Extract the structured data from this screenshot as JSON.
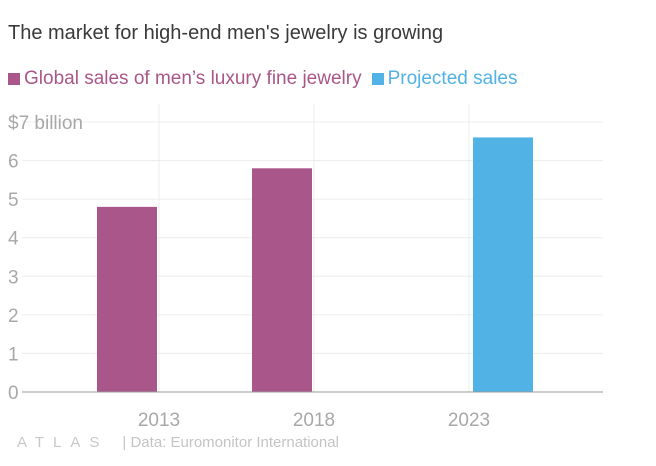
{
  "colors": {
    "actual": "#a9578a",
    "projected": "#51b2e5",
    "grid": "#ececec",
    "axis": "#999999",
    "tick_text": "#a8a8a8",
    "title_text": "#3a3a3a"
  },
  "chart_data": {
    "type": "bar",
    "title": "The market for high-end men's jewelry is growing",
    "categories": [
      "2013",
      "2018",
      "2023"
    ],
    "series": [
      {
        "name": "Global sales of men’s luxury fine jewelry",
        "values": [
          4.8,
          5.8,
          null
        ],
        "color": "#a9578a"
      },
      {
        "name": "Projected sales",
        "values": [
          null,
          null,
          6.6
        ],
        "color": "#51b2e5"
      }
    ],
    "y_ticks": [
      "0",
      "1",
      "2",
      "3",
      "4",
      "5",
      "6",
      "$7 billion"
    ],
    "ylim": [
      0,
      7
    ],
    "grid": true,
    "legend_position": "top-left"
  },
  "footer": {
    "logo": "ATLAS",
    "source": "| Data: Euromonitor International"
  }
}
